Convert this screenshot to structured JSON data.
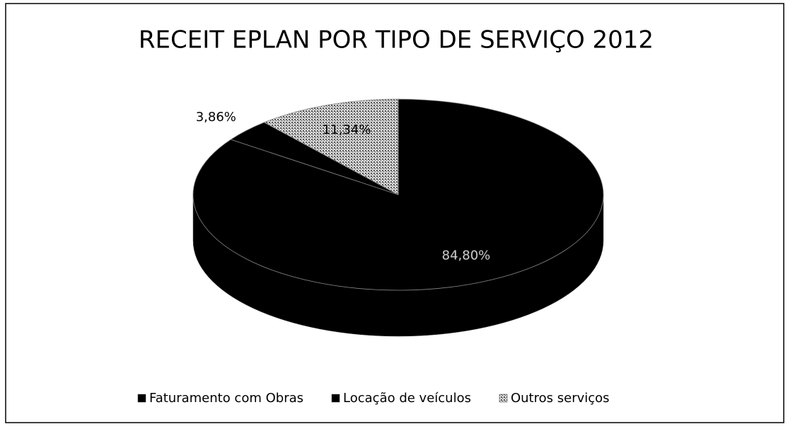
{
  "chart_data": {
    "type": "pie",
    "title": "RECEIT EPLAN POR TIPO DE SERVIÇO  2012",
    "categories": [
      "Faturamento com Obras",
      "Locação de veículos",
      "Outros serviços"
    ],
    "values": [
      84.8,
      3.86,
      11.34
    ],
    "value_labels": [
      "84,80%",
      "3,86%",
      "11,34%"
    ],
    "colors": [
      "#000000",
      "#000000",
      "#9a9a9a"
    ],
    "legend": "bottom"
  }
}
